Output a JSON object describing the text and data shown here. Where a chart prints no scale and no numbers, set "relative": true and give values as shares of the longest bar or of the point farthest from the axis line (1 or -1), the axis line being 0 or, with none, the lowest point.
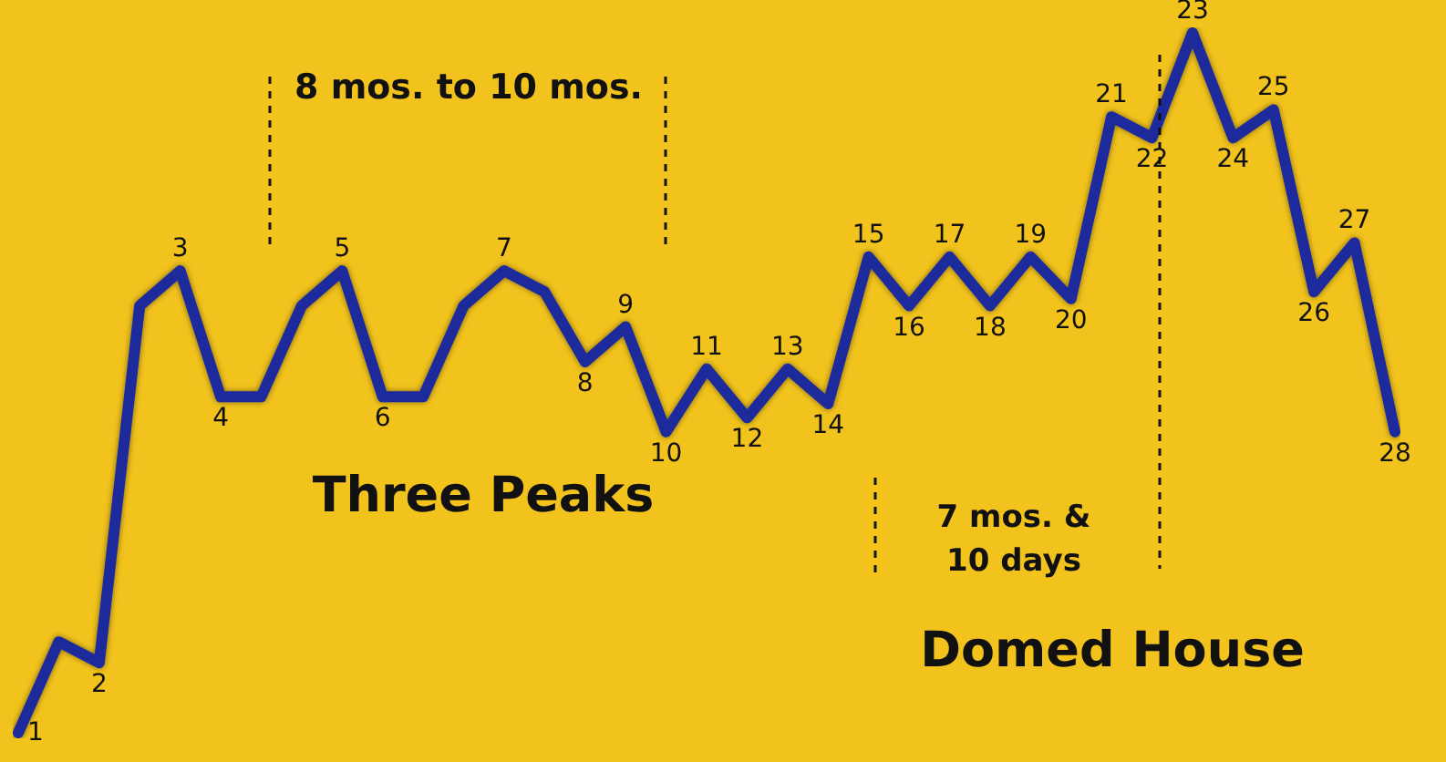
{
  "chart_data": {
    "type": "line",
    "relative": true,
    "color": "#1c2a9c",
    "marker": "none",
    "categories": [
      "1",
      null,
      "2",
      null,
      "3",
      "4",
      null,
      null,
      "5",
      "6",
      null,
      null,
      "7",
      null,
      "8",
      "9",
      "10",
      "11",
      "12",
      "13",
      "14",
      "15",
      "16",
      "17",
      "18",
      "19",
      "20",
      "21",
      "22",
      "23",
      "24",
      "25",
      "26",
      "27",
      "28"
    ],
    "values": [
      0,
      0.13,
      0.1,
      0.61,
      0.66,
      0.48,
      0.48,
      0.61,
      0.66,
      0.48,
      0.48,
      0.61,
      0.66,
      0.63,
      0.53,
      0.58,
      0.43,
      0.52,
      0.45,
      0.52,
      0.47,
      0.68,
      0.61,
      0.68,
      0.61,
      0.68,
      0.62,
      0.88,
      0.85,
      1,
      0.85,
      0.89,
      0.63,
      0.7,
      0.43
    ],
    "annotations": [
      "8 mos. to 10 mos.",
      "Three Peaks",
      "7 mos. &",
      "10 days",
      "Domed House"
    ]
  }
}
